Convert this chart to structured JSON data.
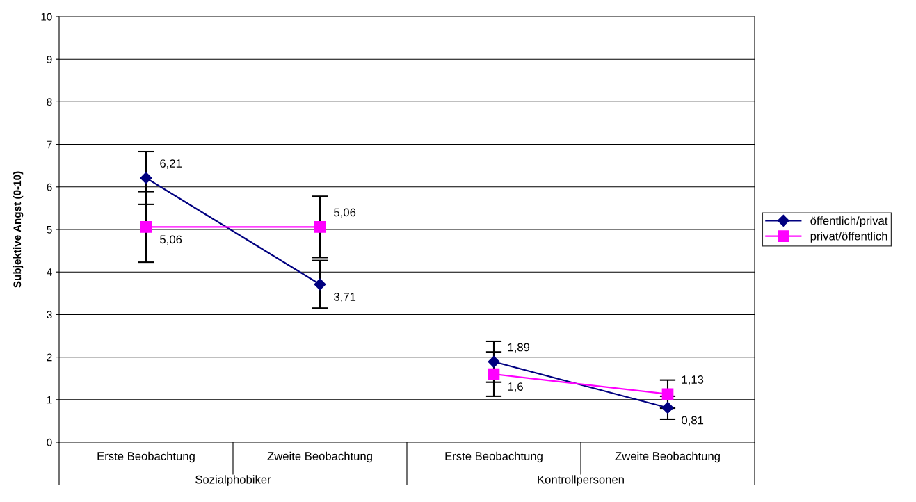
{
  "chart_data": {
    "type": "line",
    "ylabel": "Subjektive Angst (0-10)",
    "categories": [
      "Erste Beobachtung",
      "Zweite Beobachtung",
      "Erste Beobachtung",
      "Zweite Beobachtung"
    ],
    "annotations": [
      "Sozialphobiker",
      "Kontrollpersonen"
    ],
    "series": [
      {
        "name": "öffentlich/privat",
        "color": "#000080",
        "marker": "diamond",
        "values": [
          6.21,
          3.71,
          1.89,
          0.81
        ],
        "errors": [
          0.62,
          0.56,
          0.48,
          0.27
        ],
        "value_labels": [
          "6,21",
          "3,71",
          "1,89",
          "0,81"
        ]
      },
      {
        "name": "privat/öffentlich",
        "color": "#ff00ff",
        "marker": "square",
        "values": [
          5.06,
          5.06,
          1.6,
          1.13
        ],
        "errors": [
          0.83,
          0.72,
          0.52,
          0.33
        ],
        "value_labels": [
          "5,06",
          "5,06",
          "1,6",
          "1,13"
        ]
      }
    ],
    "ylim": [
      0,
      10
    ],
    "yticks": [
      0,
      1,
      2,
      3,
      4,
      5,
      6,
      7,
      8,
      9,
      10
    ],
    "grid": "y",
    "legend": "right",
    "line_style": "solid"
  }
}
